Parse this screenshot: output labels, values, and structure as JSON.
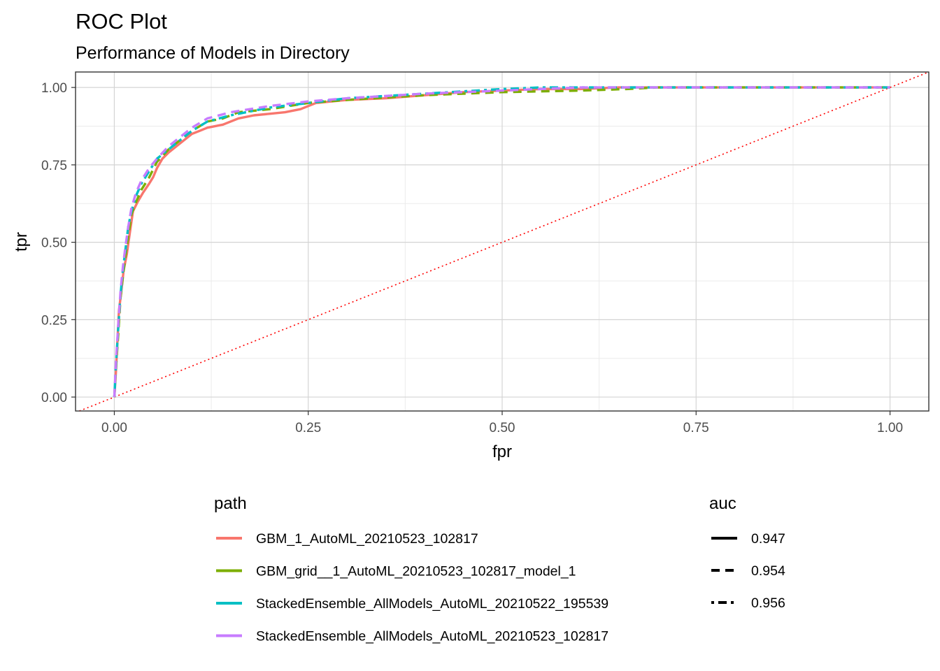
{
  "chart_data": {
    "type": "line",
    "title": "ROC Plot",
    "subtitle": "Performance of Models in Directory",
    "xlabel": "fpr",
    "ylabel": "tpr",
    "xlim": [
      -0.05,
      1.05
    ],
    "ylim": [
      -0.045,
      1.05
    ],
    "x_ticks": [
      "0.00",
      "0.25",
      "0.50",
      "0.75",
      "1.00"
    ],
    "y_ticks": [
      "0.00",
      "0.25",
      "0.50",
      "0.75",
      "1.00"
    ],
    "grid": true,
    "reference_line": {
      "type": "diagonal",
      "color": "#ff0000",
      "style": "dotted"
    },
    "legend_path": {
      "title": "path",
      "position": "bottom",
      "entries": [
        {
          "label": "GBM_1_AutoML_20210523_102817",
          "color": "#f8766d"
        },
        {
          "label": "GBM_grid__1_AutoML_20210523_102817_model_1",
          "color": "#7cae00"
        },
        {
          "label": "StackedEnsemble_AllModels_AutoML_20210522_195539",
          "color": "#00bfc4"
        },
        {
          "label": "StackedEnsemble_AllModels_AutoML_20210523_102817",
          "color": "#c77cff"
        }
      ]
    },
    "legend_auc": {
      "title": "auc",
      "entries": [
        {
          "label": "0.947",
          "linetype": "solid"
        },
        {
          "label": "0.954",
          "linetype": "dashed"
        },
        {
          "label": "0.956",
          "linetype": "dotdash"
        }
      ]
    },
    "series": [
      {
        "name": "GBM_1_AutoML_20210523_102817",
        "color": "#f8766d",
        "linetype": "solid",
        "points": [
          [
            0,
            0
          ],
          [
            0.002,
            0.08
          ],
          [
            0.004,
            0.18
          ],
          [
            0.006,
            0.28
          ],
          [
            0.009,
            0.34
          ],
          [
            0.012,
            0.41
          ],
          [
            0.016,
            0.46
          ],
          [
            0.02,
            0.53
          ],
          [
            0.024,
            0.6
          ],
          [
            0.03,
            0.63
          ],
          [
            0.037,
            0.66
          ],
          [
            0.045,
            0.69
          ],
          [
            0.05,
            0.71
          ],
          [
            0.055,
            0.74
          ],
          [
            0.062,
            0.77
          ],
          [
            0.07,
            0.79
          ],
          [
            0.08,
            0.81
          ],
          [
            0.09,
            0.83
          ],
          [
            0.1,
            0.85
          ],
          [
            0.11,
            0.86
          ],
          [
            0.12,
            0.87
          ],
          [
            0.14,
            0.88
          ],
          [
            0.16,
            0.9
          ],
          [
            0.18,
            0.91
          ],
          [
            0.2,
            0.915
          ],
          [
            0.22,
            0.92
          ],
          [
            0.24,
            0.93
          ],
          [
            0.26,
            0.95
          ],
          [
            0.3,
            0.96
          ],
          [
            0.35,
            0.965
          ],
          [
            0.4,
            0.975
          ],
          [
            0.45,
            0.985
          ],
          [
            0.5,
            0.99
          ],
          [
            0.55,
            0.995
          ],
          [
            0.6,
            0.995
          ],
          [
            0.65,
            1.0
          ],
          [
            0.7,
            1.0
          ],
          [
            0.8,
            1.0
          ],
          [
            0.9,
            1.0
          ],
          [
            1.0,
            1.0
          ]
        ]
      },
      {
        "name": "GBM_grid__1_AutoML_20210523_102817_model_1",
        "color": "#7cae00",
        "linetype": "dashed",
        "points": [
          [
            0,
            0
          ],
          [
            0.002,
            0.09
          ],
          [
            0.005,
            0.2
          ],
          [
            0.008,
            0.32
          ],
          [
            0.011,
            0.39
          ],
          [
            0.014,
            0.45
          ],
          [
            0.018,
            0.52
          ],
          [
            0.022,
            0.59
          ],
          [
            0.028,
            0.63
          ],
          [
            0.035,
            0.67
          ],
          [
            0.045,
            0.71
          ],
          [
            0.055,
            0.76
          ],
          [
            0.07,
            0.8
          ],
          [
            0.085,
            0.83
          ],
          [
            0.1,
            0.86
          ],
          [
            0.12,
            0.89
          ],
          [
            0.14,
            0.9
          ],
          [
            0.16,
            0.92
          ],
          [
            0.2,
            0.93
          ],
          [
            0.25,
            0.95
          ],
          [
            0.3,
            0.96
          ],
          [
            0.4,
            0.975
          ],
          [
            0.5,
            0.985
          ],
          [
            0.6,
            0.99
          ],
          [
            0.66,
            0.995
          ],
          [
            0.7,
            1.0
          ],
          [
            0.8,
            1.0
          ],
          [
            0.9,
            1.0
          ],
          [
            1.0,
            1.0
          ]
        ]
      },
      {
        "name": "StackedEnsemble_AllModels_AutoML_20210522_195539",
        "color": "#00bfc4",
        "linetype": "dotdash",
        "points": [
          [
            0,
            0
          ],
          [
            0.002,
            0.1
          ],
          [
            0.005,
            0.22
          ],
          [
            0.008,
            0.33
          ],
          [
            0.011,
            0.41
          ],
          [
            0.014,
            0.47
          ],
          [
            0.018,
            0.55
          ],
          [
            0.022,
            0.6
          ],
          [
            0.028,
            0.65
          ],
          [
            0.035,
            0.69
          ],
          [
            0.045,
            0.73
          ],
          [
            0.055,
            0.77
          ],
          [
            0.07,
            0.8
          ],
          [
            0.085,
            0.83
          ],
          [
            0.1,
            0.86
          ],
          [
            0.12,
            0.89
          ],
          [
            0.15,
            0.91
          ],
          [
            0.2,
            0.935
          ],
          [
            0.25,
            0.95
          ],
          [
            0.3,
            0.965
          ],
          [
            0.4,
            0.98
          ],
          [
            0.5,
            0.995
          ],
          [
            0.55,
            1.0
          ],
          [
            0.7,
            1.0
          ],
          [
            0.8,
            1.0
          ],
          [
            0.9,
            1.0
          ],
          [
            1.0,
            1.0
          ]
        ]
      },
      {
        "name": "StackedEnsemble_AllModels_AutoML_20210523_102817",
        "color": "#c77cff",
        "linetype": "dashed",
        "points": [
          [
            0,
            0
          ],
          [
            0.002,
            0.11
          ],
          [
            0.005,
            0.23
          ],
          [
            0.008,
            0.34
          ],
          [
            0.011,
            0.42
          ],
          [
            0.014,
            0.48
          ],
          [
            0.018,
            0.55
          ],
          [
            0.022,
            0.61
          ],
          [
            0.028,
            0.66
          ],
          [
            0.035,
            0.7
          ],
          [
            0.045,
            0.74
          ],
          [
            0.055,
            0.77
          ],
          [
            0.07,
            0.81
          ],
          [
            0.085,
            0.84
          ],
          [
            0.1,
            0.87
          ],
          [
            0.12,
            0.9
          ],
          [
            0.15,
            0.92
          ],
          [
            0.2,
            0.94
          ],
          [
            0.25,
            0.955
          ],
          [
            0.3,
            0.965
          ],
          [
            0.4,
            0.98
          ],
          [
            0.5,
            0.99
          ],
          [
            0.6,
            1.0
          ],
          [
            0.7,
            1.0
          ],
          [
            0.8,
            1.0
          ],
          [
            0.9,
            1.0
          ],
          [
            1.0,
            1.0
          ]
        ]
      }
    ]
  }
}
